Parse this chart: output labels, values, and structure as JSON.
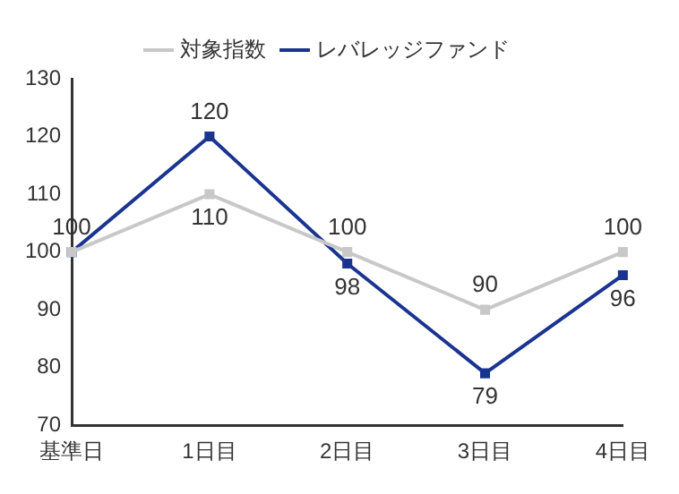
{
  "chart_data": {
    "type": "line",
    "categories": [
      "基準日",
      "1日目",
      "2日目",
      "3日目",
      "4日目"
    ],
    "series": [
      {
        "name": "対象指数",
        "color": "#c8c8c8",
        "values": [
          100,
          110,
          100,
          90,
          100
        ],
        "value_labels": [
          null,
          "110",
          "100",
          "90",
          "100"
        ]
      },
      {
        "name": "レバレッジファンド",
        "color": "#1a3490",
        "values": [
          100,
          120,
          98,
          79,
          96
        ],
        "value_labels": [
          "100",
          "120",
          "98",
          "79",
          "96"
        ]
      }
    ],
    "ylim": [
      70,
      130
    ],
    "yticks": [
      70,
      80,
      90,
      100,
      110,
      120,
      130
    ],
    "grid": false,
    "legend": "top",
    "marker": "square",
    "line_style": "solid"
  }
}
